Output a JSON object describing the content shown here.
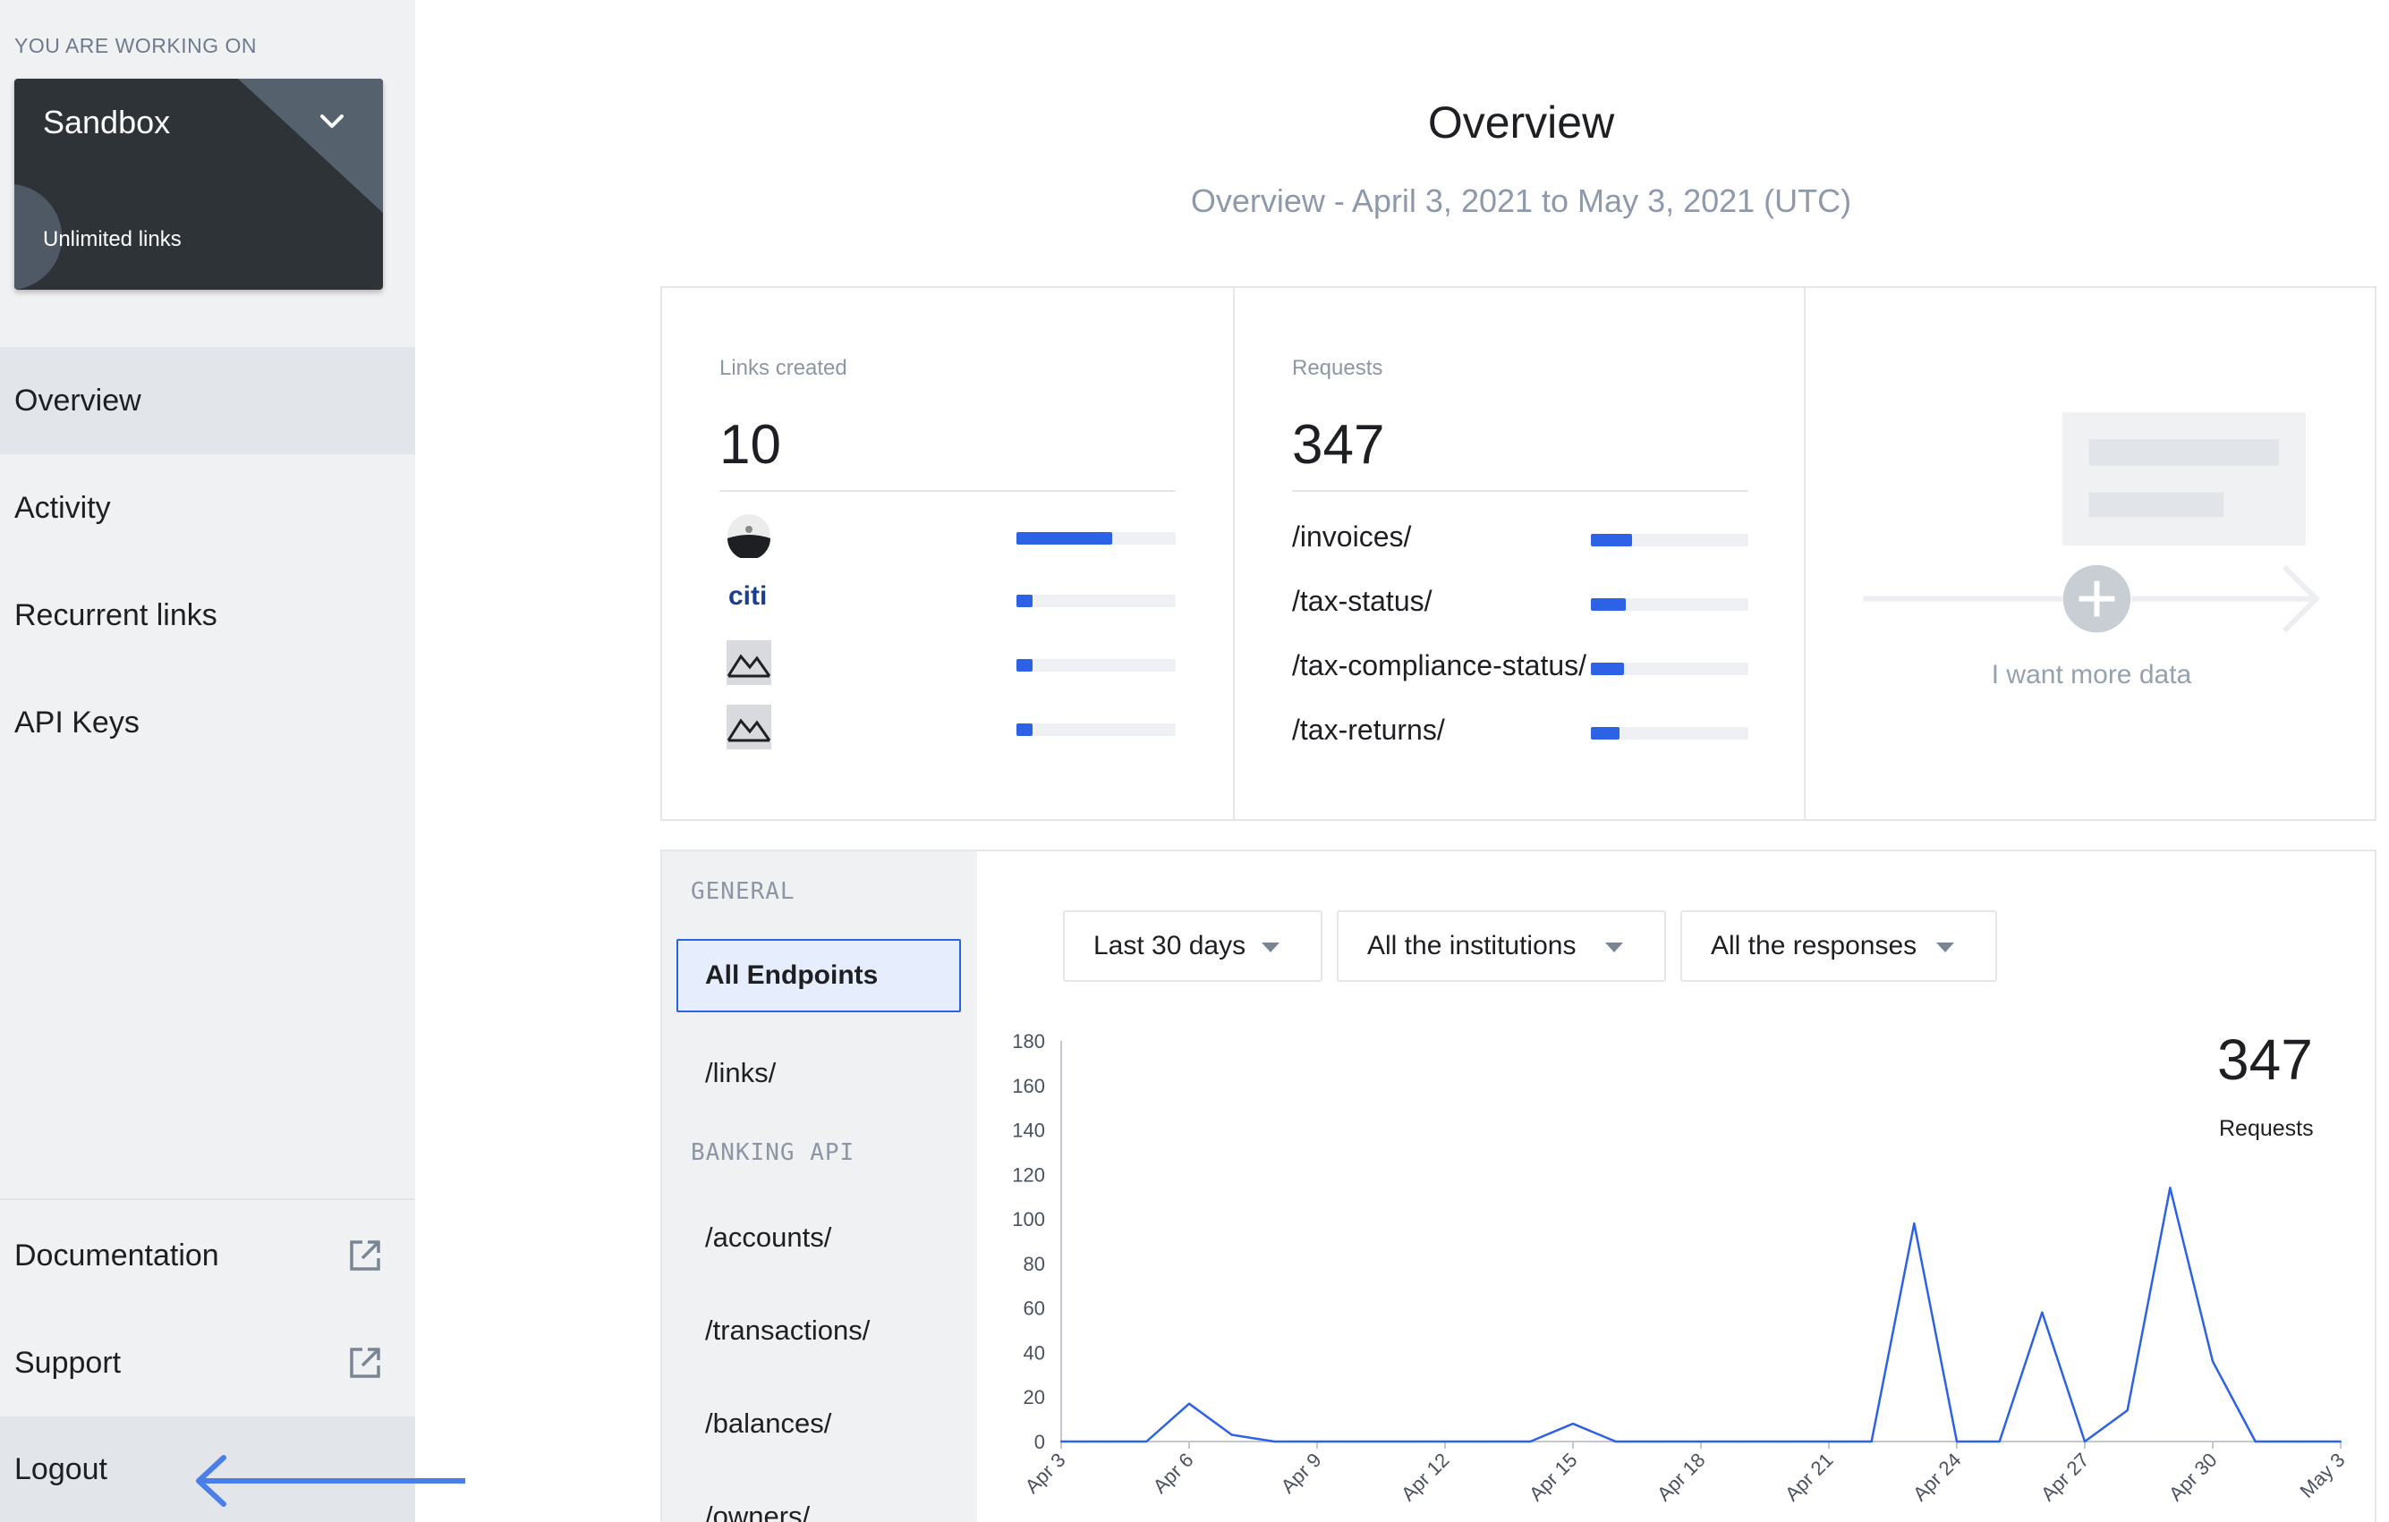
{
  "sidebar": {
    "working_on_label": "YOU ARE WORKING ON",
    "environment": {
      "name": "Sandbox",
      "subtitle": "Unlimited links"
    },
    "nav": [
      {
        "label": "Overview",
        "active": true
      },
      {
        "label": "Activity",
        "active": false
      },
      {
        "label": "Recurrent links",
        "active": false
      },
      {
        "label": "API Keys",
        "active": false
      }
    ],
    "footer": [
      {
        "label": "Documentation",
        "icon": "external-link-icon"
      },
      {
        "label": "Support",
        "icon": "external-link-icon"
      },
      {
        "label": "Logout"
      }
    ]
  },
  "header": {
    "title": "Overview",
    "subtitle": "Overview - April 3, 2021 to May 3, 2021 (UTC)"
  },
  "stats": {
    "links": {
      "label": "Links created",
      "value": "10",
      "rows": [
        {
          "icon": "bank-logo-icon",
          "fraction": 0.6
        },
        {
          "icon": "citi-logo-icon",
          "logo_text": "citi",
          "fraction": 0.1
        },
        {
          "icon": "mountain-logo-icon",
          "fraction": 0.1
        },
        {
          "icon": "mountain-logo-icon",
          "fraction": 0.1
        }
      ]
    },
    "requests": {
      "label": "Requests",
      "value": "347",
      "rows": [
        {
          "name": "/invoices/",
          "fraction": 0.26
        },
        {
          "name": "/tax-status/",
          "fraction": 0.22
        },
        {
          "name": "/tax-compliance-status/",
          "fraction": 0.21
        },
        {
          "name": "/tax-returns/",
          "fraction": 0.18
        }
      ]
    },
    "more_data": {
      "label": "I want more data"
    }
  },
  "panel": {
    "groups": [
      {
        "label": "GENERAL"
      },
      {
        "label": "BANKING API"
      }
    ],
    "endpoints": [
      {
        "label": "All Endpoints",
        "selected": true
      },
      {
        "label": "/links/"
      },
      {
        "label": "/accounts/"
      },
      {
        "label": "/transactions/"
      },
      {
        "label": "/balances/"
      },
      {
        "label": "/owners/"
      }
    ],
    "filters": [
      {
        "label": "Last 30 days"
      },
      {
        "label": "All the institutions"
      },
      {
        "label": "All the responses"
      }
    ],
    "total_value": "347",
    "total_label": "Requests"
  },
  "chart_data": {
    "type": "line",
    "x": [
      "Apr 3",
      "Apr 4",
      "Apr 5",
      "Apr 6",
      "Apr 7",
      "Apr 8",
      "Apr 9",
      "Apr 10",
      "Apr 11",
      "Apr 12",
      "Apr 13",
      "Apr 14",
      "Apr 15",
      "Apr 16",
      "Apr 17",
      "Apr 18",
      "Apr 19",
      "Apr 20",
      "Apr 21",
      "Apr 22",
      "Apr 23",
      "Apr 24",
      "Apr 25",
      "Apr 26",
      "Apr 27",
      "Apr 28",
      "Apr 29",
      "Apr 30",
      "May 1",
      "May 2",
      "May 3"
    ],
    "series": [
      {
        "values": [
          0,
          0,
          0,
          17,
          3,
          0,
          0,
          0,
          0,
          0,
          0,
          0,
          8,
          0,
          0,
          0,
          0,
          0,
          0,
          0,
          98,
          0,
          0,
          58,
          0,
          14,
          114,
          36,
          0,
          0,
          0
        ]
      }
    ],
    "xticks": [
      "Apr 3",
      "Apr 6",
      "Apr 9",
      "Apr 12",
      "Apr 15",
      "Apr 18",
      "Apr 21",
      "Apr 24",
      "Apr 27",
      "Apr 30",
      "May 3"
    ],
    "yticks": [
      0,
      20,
      40,
      60,
      80,
      100,
      120,
      140,
      160,
      180
    ],
    "ylim": [
      0,
      180
    ],
    "grid": false,
    "color": "#2d61e6"
  },
  "colors": {
    "accent": "#2d61e6",
    "sidebar_bg": "#f0f1f3",
    "card_dark": "#2e3338"
  }
}
